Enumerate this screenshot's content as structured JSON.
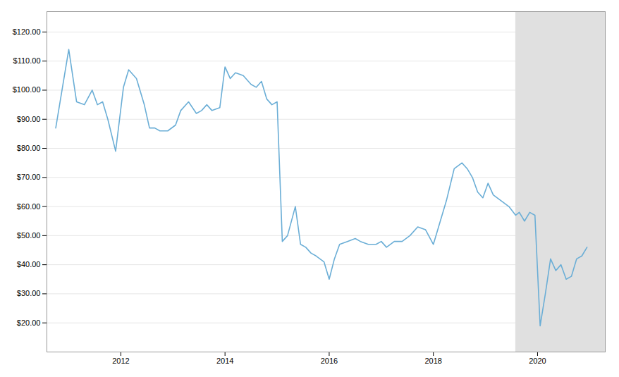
{
  "chart_data": {
    "type": "line",
    "color": "#6baed6",
    "grid": true,
    "xlim": [
      2010.58,
      2021.3
    ],
    "xticks": [
      2012,
      2014,
      2016,
      2018,
      2020
    ],
    "ylim": [
      10,
      127
    ],
    "yticks": [
      {
        "value": 20,
        "label": "$20.00"
      },
      {
        "value": 30,
        "label": "$30.00"
      },
      {
        "value": 40,
        "label": "$40.00"
      },
      {
        "value": 50,
        "label": "$50.00"
      },
      {
        "value": 60,
        "label": "$60.00"
      },
      {
        "value": 70,
        "label": "$70.00"
      },
      {
        "value": 80,
        "label": "$80.00"
      },
      {
        "value": 90,
        "label": "$90.00"
      },
      {
        "value": 100,
        "label": "$100.00"
      },
      {
        "value": 110,
        "label": "$110.00"
      },
      {
        "value": 120,
        "label": "$120.00"
      }
    ],
    "shaded_region": {
      "start": 2019.58,
      "end": 2021.3,
      "color": "#e0e0e0"
    },
    "x": [
      2010.75,
      2011.0,
      2011.15,
      2011.3,
      2011.45,
      2011.55,
      2011.65,
      2011.75,
      2011.9,
      2012.05,
      2012.15,
      2012.3,
      2012.45,
      2012.55,
      2012.65,
      2012.75,
      2012.9,
      2013.05,
      2013.15,
      2013.3,
      2013.45,
      2013.55,
      2013.65,
      2013.75,
      2013.9,
      2014.0,
      2014.1,
      2014.2,
      2014.35,
      2014.5,
      2014.6,
      2014.7,
      2014.8,
      2014.9,
      2015.0,
      2015.1,
      2015.2,
      2015.35,
      2015.45,
      2015.55,
      2015.65,
      2015.75,
      2015.9,
      2016.0,
      2016.1,
      2016.2,
      2016.35,
      2016.5,
      2016.6,
      2016.75,
      2016.9,
      2017.0,
      2017.1,
      2017.25,
      2017.4,
      2017.55,
      2017.7,
      2017.85,
      2018.0,
      2018.1,
      2018.25,
      2018.4,
      2018.55,
      2018.65,
      2018.75,
      2018.85,
      2018.95,
      2019.05,
      2019.15,
      2019.3,
      2019.45,
      2019.58,
      2019.65,
      2019.75,
      2019.85,
      2019.95,
      2020.05,
      2020.15,
      2020.25,
      2020.35,
      2020.45,
      2020.55,
      2020.65,
      2020.75,
      2020.85,
      2020.95
    ],
    "values": [
      87,
      114,
      96,
      95,
      100,
      95,
      96,
      90,
      79,
      101,
      107,
      104,
      95,
      87,
      87,
      86,
      86,
      88,
      93,
      96,
      92,
      93,
      95,
      93,
      94,
      108,
      104,
      106,
      105,
      102,
      101,
      103,
      97,
      95,
      96,
      48,
      50,
      60,
      47,
      46,
      44,
      43,
      41,
      35,
      42,
      47,
      48,
      49,
      48,
      47,
      47,
      48,
      46,
      48,
      48,
      50,
      53,
      52,
      47,
      53,
      62,
      73,
      75,
      73,
      70,
      65,
      63,
      68,
      64,
      62,
      60,
      57,
      58,
      55,
      58,
      57,
      19,
      30,
      42,
      38,
      40,
      35,
      36,
      42,
      43,
      46
    ]
  }
}
